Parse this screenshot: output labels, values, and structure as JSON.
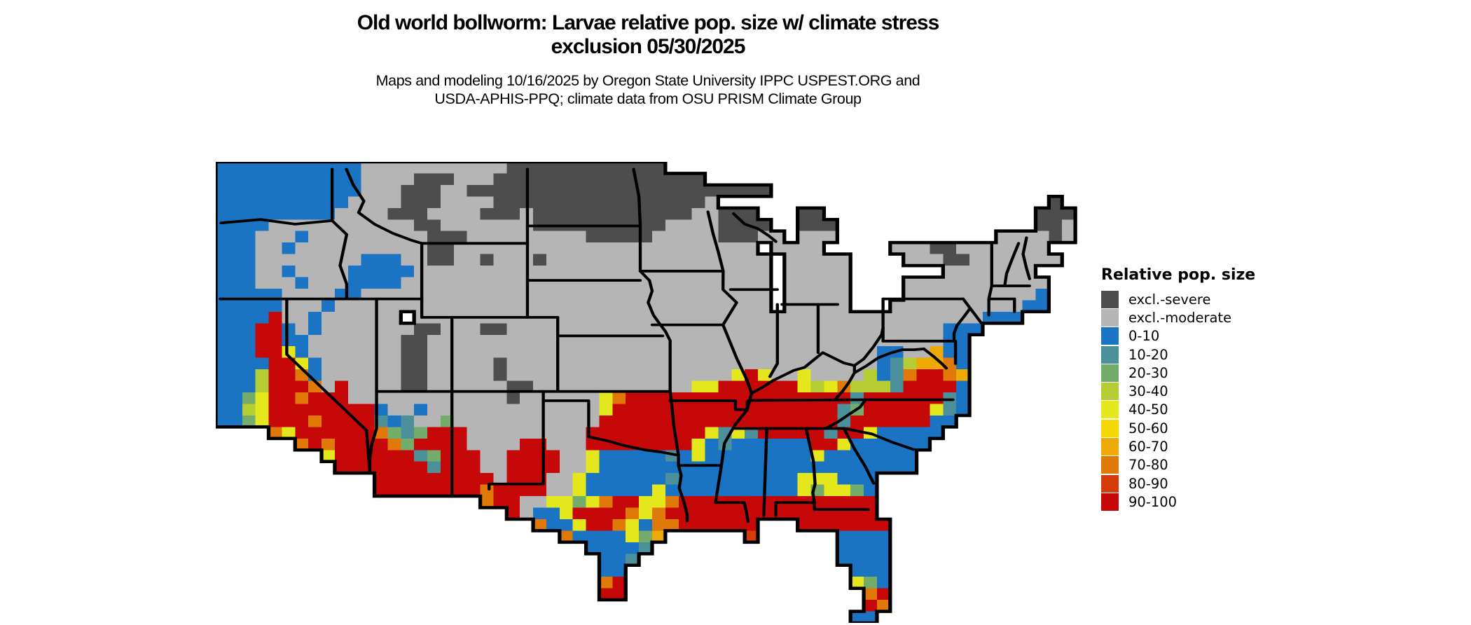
{
  "header": {
    "title_line1": "Old world bollworm: Larvae relative pop. size w/ climate stress",
    "title_line2": "exclusion 05/30/2025",
    "subtitle_line1": "Maps and modeling 10/16/2025 by Oregon State University IPPC USPEST.ORG and",
    "subtitle_line2": "USDA-APHIS-PPQ; climate data from OSU PRISM Climate Group"
  },
  "legend": {
    "title": "Relative pop. size",
    "entries": [
      {
        "label": "excl.-severe",
        "color": "#4d4d4d"
      },
      {
        "label": "excl.-moderate",
        "color": "#b5b5b5"
      },
      {
        "label": "0-10",
        "color": "#1b73c4"
      },
      {
        "label": "10-20",
        "color": "#4c909c"
      },
      {
        "label": "20-30",
        "color": "#74ad6b"
      },
      {
        "label": "30-40",
        "color": "#b5cc33"
      },
      {
        "label": "40-50",
        "color": "#e3e71c"
      },
      {
        "label": "50-60",
        "color": "#f5d803"
      },
      {
        "label": "60-70",
        "color": "#eda906"
      },
      {
        "label": "70-80",
        "color": "#e07907"
      },
      {
        "label": "80-90",
        "color": "#d43c09"
      },
      {
        "label": "90-100",
        "color": "#c60808"
      }
    ]
  },
  "map": {
    "border_color": "#000000",
    "palette": {
      "s": "#4d4d4d",
      "m": "#b5b5b5",
      "b": "#1b73c4",
      "t": "#4c909c",
      "g": "#74ad6b",
      "y": "#b5cc33",
      "Y": "#e3e71c",
      "G": "#f5d803",
      "o": "#eda906",
      "O": "#e07907",
      "r": "#d43c09",
      "R": "#c60808"
    },
    "grid_cols": 66,
    "grid_rows": 40,
    "grid": [
      "bbbbbbbbbbbmmmmmmmmmmmssssssssssss................................",
      "bbbbbbbbbbbmmmmsssmmmssssssssssssssss.............................",
      "bbbbbbbbbbbmmmsssmmsssssssssssssssssssssss..........................",
      "bbbbbbbbbbmmmmsssmmmmssssssssssssssssm.........................s..",
      "bbbbbbbbbmmmmsssmmmmsssmssssssssssssmmsss...ss................sss.",
      "bbbbmmmmmmmmmmmssmmmmmmmssssssssssmmmmssss..sss...............ssm.",
      "bbbmmmbmmmmmmmmmsssmmmmmmmmmsssssmmmmmsssmm.mmm............mmmmsm.",
      "bbbmmbmmmmmmmmmmssmmmmmmmmmmmmmmmmmmmmmmm.mmmm.....mmmssmmmmmmm.",
      "bbbmmmmmmmmbbbmmssmmsmmmsmmmmmmmmmmmmmmmmm.mmmmm....mmmssmmmmmmm.",
      "bbbmmbmmmmbbbbbmmmmmmmmmmmmmmmmmmmmmmmmmmm.mmmmm.......mmmmmmm...",
      "bbbmmmbmmmbbbbmmmmmmmmmmmmmmmmmmmmmmmmmmmm.mmmmm....mmmmmmmmmmm..",
      "bbbbbmmmmbbmmmmmmmmmmmmmmmmmmmmmmmmmmmmmmm.mmmmm....mmmmmmmmmmb..",
      "bbbbbmmmbmmmmmmmmmmmmmmmmmmmmmmmmmmmmmmmmm.mmmmm...mmmmmmmmmmbb..",
      "bbbbRmmbmmmmmm.mmmmmmmmmmmmmmmmmmmmmmmmmmmmmmmmmmmmmmmmmmmbbb....",
      "bbbRRbmbmmmmmmmssmmmssmmmmmmmmmmmmmmmmmmmmmmmmmmmmmmmmmbbb......",
      "bbbRRbbmmmmmmmssmmmmmmmmmmmmmmmmmmmmmmmmmmmmmmmmmmmmmmmbb.......",
      "bbbRRYbmmmmmmmssmmmmmmmmmmmmmmmmmmmmmmmmmmmmmmmmmmbbmmobb........",
      "bbbbRRYbmmmmmmssmmmmmsmmmmmmmmmmmmmmmmmmmmmmmmmmmmbtyooOb........",
      "bbbyRRObmmmmmmssmmmmmsmmmmmmmmmmmmmmmmmYRYmmYmmmmybtORROo.........",
      "bbbyRRROmRmmmmssmmmmmmssmmmmmmmmmmmmYYRRRRRRYyYOyyytRRRRb.........",
      "bbgYRRORRRmmmmmmmmmmmmsmmmmmmYORRRRRRRRRRRRRRRRRtRRRRRRtb.........",
      "bbyYRRRRRRRRbmmbmmmmmmmmmmmmmYRRRRRRRRRRRRRRRRRtgRRRRRYtb.........",
      "bbgYRRRORRRRtbtmmgmmmmmmmmmmmRRRRRRRRRRRRRRRRRRtRRRRRRbb..........",
      "....OYRRRRRROgtgRRRmmmmmmmmmRRRRRRRRRYtYtRRRRRtRRYbbbbb...........",
      "......ORORRRROgRRRRmmmmRRmmmRRRRRRRRYbtbbbbbbRRYbbbbbb............",
      "........YRRRRRRtgRRRmmRRRRmmYbbbbbtbYbbbbbbbbYbbbbbbb.............",
      ".........RRRRRRRtRRRmmRRRRmmYbbbbbbbbbbbbbbbbbbbbbbbb...............",
      "............RRRRRRRRRmRRRmmYbbbbbbtbbbbbbbbbYYYbbb................",
      "............RRRRRRRRORRRRmmYbbbbbYbbbbbbbbbbYgYYgb................",
      "....................ORRmmYYgYORRYYORRRRRRRRRRRRRRR...............",
      "......................RmbbYRRRROYORRRRRRRRRRRRRRRR...............",
      "........................ObbYRROYbOORRRRRR...RRRRRRR...............",
      "..........................ObbbbYgo......r......bbbb...............",
      "............................bbbbt..............bbbb...............",
      ".............................bbt...............bbbb...............",
      ".............................bb.................bbb...............",
      ".............................OR.................Ygb...............",
      ".............................RR..................OR...............",
      ".................................................RO...............",
      "................................................bb................"
    ],
    "borders": [
      [
        [
          4,
          53
        ],
        [
          34,
          50
        ],
        [
          60,
          54
        ],
        [
          88,
          51
        ]
      ],
      [
        [
          88,
          6.4
        ],
        [
          88,
          51
        ],
        [
          99,
          63
        ],
        [
          94,
          90
        ],
        [
          99,
          106
        ],
        [
          99,
          118.9
        ]
      ],
      [
        [
          3.4,
          118.9
        ],
        [
          155.8,
          118.9
        ]
      ],
      [
        [
          53.7,
          118.9
        ],
        [
          53.7,
          167
        ],
        [
          114,
          233
        ],
        [
          116.5,
          268
        ]
      ],
      [
        [
          121.6,
          118.9
        ],
        [
          121.6,
          199.2
        ]
      ],
      [
        [
          121.6,
          199.2
        ],
        [
          343.6,
          199.2
        ]
      ],
      [
        [
          178.6,
          134.9
        ],
        [
          178.6,
          290.3
        ]
      ],
      [
        [
          155.8,
          70.7
        ],
        [
          155.8,
          134.9
        ]
      ],
      [
        [
          155.8,
          70.7
        ],
        [
          235.7,
          70.7
        ]
      ],
      [
        [
          235.7,
          6.4
        ],
        [
          235.7,
          134.9
        ]
      ],
      [
        [
          155.8,
          134.9
        ],
        [
          258.6,
          134.9
        ]
      ],
      [
        [
          98.8,
          6.4
        ],
        [
          104,
          20
        ],
        [
          112,
          34
        ],
        [
          108,
          44
        ],
        [
          120,
          54
        ],
        [
          134,
          62
        ],
        [
          148,
          68
        ],
        [
          155.8,
          70.7
        ]
      ],
      [
        [
          316,
          6.4
        ],
        [
          320,
          30
        ],
        [
          321,
          55.6
        ]
      ],
      [
        [
          235.7,
          55.6
        ],
        [
          321,
          55.6
        ]
      ],
      [
        [
          321,
          55.6
        ],
        [
          321,
          94.8
        ]
      ],
      [
        [
          321,
          94.8
        ],
        [
          328,
          103
        ],
        [
          330,
          112
        ],
        [
          327,
          122
        ],
        [
          331,
          133
        ],
        [
          336,
          141
        ],
        [
          340,
          147
        ],
        [
          343.6,
          155
        ],
        [
          343.6,
          165
        ]
      ],
      [
        [
          343.6,
          165
        ],
        [
          343.6,
          199.2
        ]
      ],
      [
        [
          235.7,
          102.8
        ],
        [
          321,
          102.8
        ]
      ],
      [
        [
          258.6,
          151
        ],
        [
          338,
          151
        ]
      ],
      [
        [
          258.6,
          134.9
        ],
        [
          258.6,
          199.2
        ]
      ],
      [
        [
          321,
          94.8
        ],
        [
          383.7,
          94.8
        ]
      ],
      [
        [
          372.2,
          43.4
        ],
        [
          376,
          62
        ],
        [
          380,
          78
        ],
        [
          383.7,
          94.8
        ]
      ],
      [
        [
          330,
          141.4
        ],
        [
          383.6,
          141.4
        ]
      ],
      [
        [
          383.7,
          94.8
        ],
        [
          383.6,
          110.8
        ],
        [
          393.9,
          122.1
        ],
        [
          383.6,
          141.4
        ],
        [
          393.9,
          170.3
        ],
        [
          401.8,
          189.6
        ],
        [
          405.2,
          200.8
        ],
        [
          401.8,
          215.3
        ],
        [
          392.7,
          228.1
        ],
        [
          384.7,
          244.2
        ],
        [
          382.4,
          263.4
        ],
        [
          377.9,
          295.6
        ]
      ],
      [
        [
          389.3,
          110.8
        ],
        [
          424.7,
          110.8
        ]
      ],
      [
        [
          391.6,
          45
        ],
        [
          400,
          54
        ],
        [
          410,
          58
        ],
        [
          418,
          64
        ],
        [
          423.6,
          69.1
        ]
      ],
      [
        [
          424.7,
          123.7
        ],
        [
          424.7,
          175
        ],
        [
          419,
          186.3
        ]
      ],
      [
        [
          455.5,
          123.7
        ],
        [
          455.5,
          165.5
        ]
      ],
      [
        [
          428.2,
          123.7
        ],
        [
          470.3,
          123.7
        ]
      ],
      [
        [
          405.2,
          200.8
        ],
        [
          413,
          196
        ],
        [
          421,
          190
        ],
        [
          429,
          185.5
        ],
        [
          437,
          181
        ],
        [
          445.3,
          178.3
        ],
        [
          452,
          172
        ],
        [
          459,
          165.5
        ],
        [
          467,
          170
        ],
        [
          475,
          174.5
        ],
        [
          483,
          176.7
        ],
        [
          490,
          171
        ],
        [
          497,
          161
        ],
        [
          503.5,
          150
        ],
        [
          504.6,
          144
        ]
      ],
      [
        [
          343.6,
          199.2
        ],
        [
          344.5,
          207.2
        ],
        [
          346.5,
          230
        ],
        [
          349.9,
          254.6
        ]
      ],
      [
        [
          343.6,
          207.2
        ],
        [
          393,
          207.2
        ],
        [
          393,
          215
        ],
        [
          402,
          215
        ],
        [
          402,
          208
        ]
      ],
      [
        [
          403,
          207
        ],
        [
          491.5,
          206.4
        ],
        [
          557.5,
          206.4
        ]
      ],
      [
        [
          247.7,
          199.2
        ],
        [
          247.7,
          207.2
        ],
        [
          282,
          207.2
        ],
        [
          282,
          238.5
        ]
      ],
      [
        [
          282,
          238.5
        ],
        [
          296,
          242
        ],
        [
          310,
          246.5
        ],
        [
          325,
          250
        ],
        [
          338,
          252
        ],
        [
          349.9,
          254.6
        ]
      ],
      [
        [
          247.7,
          207.2
        ],
        [
          247.7,
          279.5
        ],
        [
          206.7,
          279.5
        ],
        [
          206.7,
          284
        ]
      ],
      [
        [
          349.9,
          263.4
        ],
        [
          382.4,
          263.4
        ]
      ],
      [
        [
          349.9,
          254.6
        ],
        [
          349.9,
          263.4
        ]
      ],
      [
        [
          349.9,
          263.4
        ],
        [
          352,
          272
        ],
        [
          350.5,
          283
        ],
        [
          354,
          295
        ],
        [
          356.5,
          306
        ],
        [
          356.5,
          311.6
        ]
      ],
      [
        [
          377.9,
          295.6
        ],
        [
          399.7,
          295.6
        ],
        [
          401.5,
          305
        ],
        [
          402.5,
          312
        ]
      ],
      [
        [
          392.7,
          231.3
        ],
        [
          461.2,
          231.3
        ]
      ],
      [
        [
          491.5,
          206.4
        ],
        [
          487,
          213
        ],
        [
          479,
          219
        ],
        [
          470,
          226
        ],
        [
          461.2,
          231.3
        ]
      ],
      [
        [
          416.7,
          231.3
        ],
        [
          414.4,
          306.9
        ]
      ],
      [
        [
          446.4,
          231.3
        ],
        [
          452,
          260
        ],
        [
          453.2,
          279.5
        ],
        [
          451.5,
          287
        ],
        [
          452.7,
          295.6
        ]
      ],
      [
        [
          423.5,
          306.9
        ],
        [
          423.5,
          295.6
        ],
        [
          452.7,
          295.6
        ],
        [
          452.7,
          301.6
        ],
        [
          493.5,
          301.6
        ]
      ],
      [
        [
          461.2,
          231.3
        ],
        [
          475,
          231.3
        ],
        [
          496,
          236
        ],
        [
          511,
          243
        ],
        [
          527.5,
          249.5
        ]
      ],
      [
        [
          475,
          231.3
        ],
        [
          483,
          249
        ],
        [
          491,
          264
        ],
        [
          497.5,
          278.9
        ]
      ],
      [
        [
          468.1,
          206.4
        ],
        [
          474,
          199
        ],
        [
          479,
          191
        ],
        [
          483,
          183
        ],
        [
          483,
          176.7
        ]
      ],
      [
        [
          483,
          183
        ],
        [
          492,
          177
        ],
        [
          501,
          170
        ],
        [
          510,
          166
        ],
        [
          519,
          163
        ],
        [
          528,
          163
        ],
        [
          535.5,
          162.3
        ]
      ],
      [
        [
          535.5,
          162.3
        ],
        [
          543,
          169
        ],
        [
          549,
          175
        ],
        [
          552.5,
          179
        ]
      ],
      [
        [
          504.6,
          155.5
        ],
        [
          558.3,
          155.5
        ]
      ],
      [
        [
          504.6,
          144
        ],
        [
          504.6,
          155.5
        ]
      ],
      [
        [
          504.6,
          118.9
        ],
        [
          565.2,
          118.9
        ]
      ],
      [
        [
          565.2,
          118.9
        ],
        [
          570.5,
          127
        ],
        [
          566,
          134
        ],
        [
          560.5,
          142
        ],
        [
          558.3,
          149
        ],
        [
          558.3,
          155.5
        ]
      ],
      [
        [
          570.5,
          127
        ],
        [
          578.9,
          139.8
        ]
      ],
      [
        [
          559.4,
          155.5
        ],
        [
          559.4,
          175
        ]
      ],
      [
        [
          586.8,
          70.7
        ],
        [
          586.8,
          107.6
        ]
      ],
      [
        [
          607.1,
          70.7
        ],
        [
          602,
          85
        ],
        [
          598,
          97
        ],
        [
          596.6,
          107.6
        ]
      ],
      [
        [
          586.8,
          107.6
        ],
        [
          615.4,
          107.6
        ]
      ],
      [
        [
          584.6,
          118.9
        ],
        [
          604,
          118.9
        ]
      ],
      [
        [
          604,
          118.9
        ],
        [
          604,
          130
        ]
      ],
      [
        [
          584.6,
          118.9
        ],
        [
          584.6,
          133
        ]
      ],
      [
        [
          586.8,
          107.6
        ],
        [
          584.6,
          118.9
        ]
      ],
      [
        [
          613.1,
          65.9
        ],
        [
          610.5,
          80
        ],
        [
          613,
          92
        ],
        [
          615.4,
          101.5
        ]
      ],
      [
        [
          121.6,
          199.2
        ],
        [
          121.6,
          231.3
        ],
        [
          118,
          245
        ],
        [
          116.5,
          258
        ],
        [
          116.5,
          268
        ]
      ],
      [
        [
          504.6,
          118.9
        ],
        [
          504.6,
          144
        ]
      ]
    ]
  }
}
